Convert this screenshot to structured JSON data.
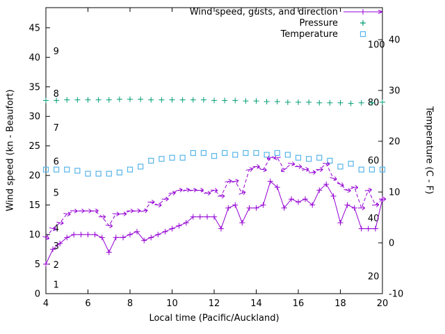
{
  "legend": {
    "items": [
      {
        "label": "Wind speed, gusts, and direction",
        "color": "#9400d3"
      },
      {
        "label": "Pressure",
        "color": "#009e73"
      },
      {
        "label": "Temperature",
        "color": "#56b4e9"
      }
    ]
  },
  "chart_data": {
    "type": "line",
    "title": "",
    "xlabel": "Local time (Pacific/Auckland)",
    "ylabel_left": "Wind speed (kn - Beaufort)",
    "ylabel_right": "Temperature (C - F)",
    "x_range": [
      4,
      20
    ],
    "left_range": [
      0,
      48.4
    ],
    "right_range": [
      -10,
      46.3
    ],
    "x_ticks": [
      4,
      6,
      8,
      10,
      12,
      14,
      16,
      18,
      20
    ],
    "left_ticks": [
      0,
      5,
      10,
      15,
      20,
      25,
      30,
      35,
      40,
      45
    ],
    "right_ticks": [
      -10,
      0,
      10,
      20,
      30,
      40
    ],
    "grid": false,
    "legend_position": "top-right-inside",
    "beaufort_x_hour": 4.35,
    "beaufort_labels": [
      {
        "t": "1",
        "v": 1.5
      },
      {
        "t": "2",
        "v": 4.8
      },
      {
        "t": "3",
        "v": 8
      },
      {
        "t": "4",
        "v": 11
      },
      {
        "t": "5",
        "v": 17
      },
      {
        "t": "6",
        "v": 22.3
      },
      {
        "t": "7",
        "v": 28
      },
      {
        "t": "8",
        "v": 33.8
      },
      {
        "t": "9",
        "v": 41
      }
    ],
    "fahrenheit_x_hour": 19.3,
    "fahrenheit_labels": [
      {
        "t": "100",
        "v": 42.1
      },
      {
        "t": "80",
        "v": 32.3
      },
      {
        "t": "60",
        "v": 22.5
      },
      {
        "t": "40",
        "v": 12.7
      },
      {
        "t": "20",
        "v": 2.9
      }
    ],
    "layout": {
      "plot": {
        "l": 66,
        "r": 550,
        "t": 11,
        "b": 422
      }
    },
    "series": [
      {
        "name": "Temperature",
        "axis": "right",
        "color": "#56b4e9",
        "style": "squares",
        "x": [
          4,
          4.5,
          5,
          5.5,
          6,
          6.5,
          7,
          7.5,
          8,
          8.5,
          9,
          9.5,
          10,
          10.5,
          11,
          11.5,
          12,
          12.5,
          13,
          13.5,
          14,
          14.5,
          15,
          15.5,
          16,
          16.5,
          17,
          17.5,
          18,
          18.5,
          19,
          19.5,
          20
        ],
        "values": [
          21,
          21,
          21,
          20.8,
          20.3,
          20.3,
          20.3,
          20.5,
          21,
          21.5,
          22.5,
          22.8,
          23,
          23,
          23.8,
          23.8,
          23.3,
          23.8,
          23.5,
          23.8,
          23.8,
          23.5,
          23.8,
          23.5,
          23,
          22.8,
          23,
          22.5,
          21.5,
          22,
          21,
          21,
          21
        ],
        "values_celsius": [
          14.4,
          14.4,
          14.4,
          14.2,
          13.6,
          13.6,
          13.6,
          13.8,
          14.4,
          15.0,
          16.2,
          16.5,
          16.8,
          16.8,
          17.7,
          17.7,
          17.1,
          17.7,
          17.3,
          17.7,
          17.7,
          17.3,
          17.7,
          17.3,
          16.8,
          16.5,
          16.8,
          16.2,
          15.0,
          15.6,
          14.4,
          14.4,
          14.4
        ]
      },
      {
        "name": "Pressure",
        "axis": "left",
        "color": "#009e73",
        "style": "plus",
        "x": [
          4,
          4.5,
          5,
          5.5,
          6,
          6.5,
          7,
          7.5,
          8,
          8.5,
          9,
          9.5,
          10,
          10.5,
          11,
          11.5,
          12,
          12.5,
          13,
          13.5,
          14,
          14.5,
          15,
          15.5,
          16,
          16.5,
          17,
          17.5,
          18,
          18.5,
          19,
          19.5,
          20
        ],
        "values": [
          32.7,
          32.7,
          32.8,
          32.8,
          32.8,
          32.8,
          32.8,
          32.9,
          32.9,
          32.9,
          32.8,
          32.8,
          32.8,
          32.8,
          32.8,
          32.8,
          32.7,
          32.7,
          32.7,
          32.6,
          32.6,
          32.5,
          32.5,
          32.4,
          32.4,
          32.4,
          32.3,
          32.3,
          32.3,
          32.2,
          32.3,
          32.3,
          32.4
        ]
      },
      {
        "name": "Wind gusts and direction",
        "axis": "left",
        "color": "#9400d3",
        "style": "dashed-arrows",
        "x": [
          4,
          4.33,
          4.67,
          5,
          5.33,
          5.67,
          6,
          6.33,
          6.67,
          7,
          7.33,
          7.67,
          8,
          8.33,
          8.67,
          9,
          9.33,
          9.67,
          10,
          10.33,
          10.67,
          11,
          11.33,
          11.67,
          12,
          12.33,
          12.67,
          13,
          13.33,
          13.67,
          14,
          14.33,
          14.67,
          15,
          15.33,
          15.67,
          16,
          16.33,
          16.67,
          17,
          17.33,
          17.67,
          18,
          18.33,
          18.67,
          19,
          19.33,
          19.67,
          20
        ],
        "values": [
          9.5,
          11,
          12,
          13.5,
          14,
          14,
          14,
          14,
          13,
          11.5,
          13.5,
          13.5,
          14,
          14,
          14,
          15.5,
          15,
          16,
          17,
          17.5,
          17.5,
          17.5,
          17.5,
          17,
          17.5,
          16.5,
          19,
          19,
          17,
          21,
          21.5,
          21,
          23,
          23,
          21,
          22,
          21.5,
          21,
          20.5,
          21,
          22,
          19.5,
          18.5,
          17.5,
          18,
          14.5,
          17.5,
          15,
          16
        ],
        "dir_deg": [
          20,
          15,
          10,
          10,
          5,
          0,
          0,
          -5,
          0,
          10,
          5,
          0,
          0,
          -5,
          -10,
          0,
          5,
          0,
          -5,
          -10,
          -15,
          -10,
          -5,
          0,
          5,
          0,
          -10,
          -15,
          -20,
          -10,
          0,
          10,
          160,
          170,
          150,
          10,
          0,
          -10,
          -5,
          0,
          10,
          15,
          20,
          10,
          5,
          0,
          -10,
          -5,
          0
        ]
      },
      {
        "name": "Wind speed",
        "axis": "left",
        "color": "#9400d3",
        "style": "line-plus",
        "x": [
          4,
          4.33,
          4.67,
          5,
          5.33,
          5.67,
          6,
          6.33,
          6.67,
          7,
          7.33,
          7.67,
          8,
          8.33,
          8.67,
          9,
          9.33,
          9.67,
          10,
          10.33,
          10.67,
          11,
          11.33,
          11.67,
          12,
          12.33,
          12.67,
          13,
          13.33,
          13.67,
          14,
          14.33,
          14.67,
          15,
          15.33,
          15.67,
          16,
          16.33,
          16.67,
          17,
          17.33,
          17.67,
          18,
          18.33,
          18.67,
          19,
          19.33,
          19.67,
          20
        ],
        "values": [
          5,
          7.5,
          8.5,
          9.5,
          10,
          10,
          10,
          10,
          9.5,
          7,
          9.5,
          9.5,
          10,
          10.5,
          9,
          9.5,
          10,
          10.5,
          11,
          11.5,
          12,
          13,
          13,
          13,
          13,
          11,
          14.5,
          15,
          12,
          14.5,
          14.5,
          15,
          19,
          18,
          14.5,
          16,
          15.5,
          16,
          15,
          17.5,
          18.5,
          16.5,
          12,
          15,
          14.5,
          11,
          11,
          11,
          16
        ]
      }
    ]
  }
}
